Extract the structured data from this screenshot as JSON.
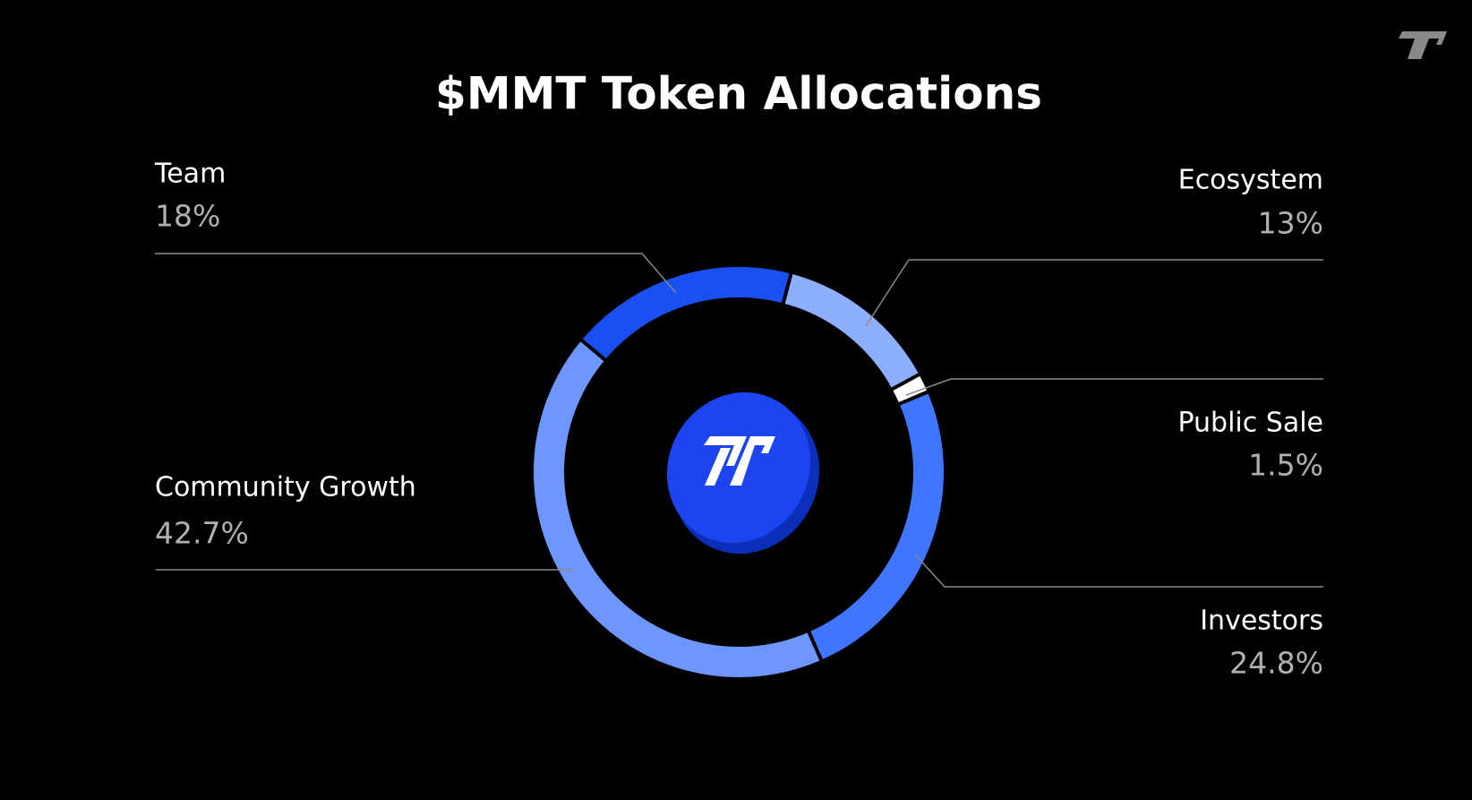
{
  "chart_data": {
    "type": "donut",
    "title": "$MMT Token Allocations",
    "categories": [
      "Team",
      "Ecosystem",
      "Public Sale",
      "Investors",
      "Community Growth"
    ],
    "values": [
      18,
      13,
      1.5,
      24.8,
      42.7
    ],
    "value_labels": [
      "18%",
      "13%",
      "1.5%",
      "24.8%",
      "42.7%"
    ],
    "colors": [
      "#1a4ff2",
      "#8eaeff",
      "#ffffff",
      "#3f75ff",
      "#6d96ff"
    ]
  }
}
